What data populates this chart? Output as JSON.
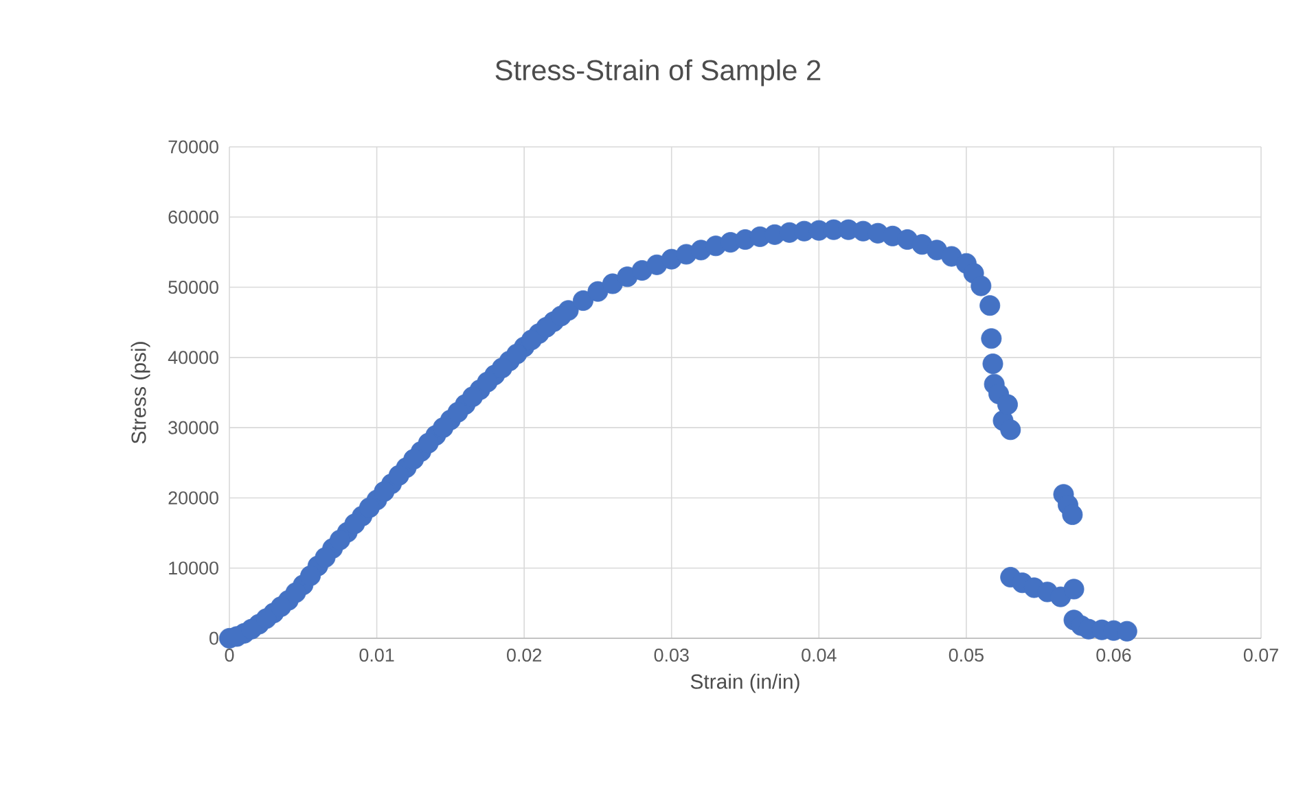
{
  "chart_data": {
    "type": "scatter",
    "title": "Stress-Strain of Sample 2",
    "xlabel": "Strain (in/in)",
    "ylabel": "Stress (psi)",
    "xlim": [
      0,
      0.07
    ],
    "ylim": [
      0,
      70000
    ],
    "xticks": [
      0,
      0.01,
      0.02,
      0.03,
      0.04,
      0.05,
      0.06,
      0.07
    ],
    "yticks": [
      0,
      10000,
      20000,
      30000,
      40000,
      50000,
      60000,
      70000
    ],
    "grid": true,
    "marker": "circle",
    "series": [
      {
        "color": "#4472c4",
        "x": [
          0,
          0.001,
          0.002,
          0.003,
          0.004,
          0.005,
          0.006,
          0.007,
          0.008,
          0.009,
          0.01,
          0.011,
          0.012,
          0.013,
          0.014,
          0.015,
          0.016,
          0.017,
          0.018,
          0.019,
          0.02,
          0.021,
          0.022,
          0.023,
          0.024,
          0.025,
          0.026,
          0.027,
          0.028,
          0.029,
          0.03,
          0.031,
          0.032,
          0.033,
          0.034,
          0.035,
          0.036,
          0.037,
          0.038,
          0.039,
          0.04,
          0.041,
          0.042,
          0.043,
          0.044,
          0.045,
          0.046,
          0.047,
          0.048,
          0.049,
          0.05,
          0.0505,
          0.051,
          0.0516,
          0.0517,
          0.0518,
          0.0519,
          0.0522,
          0.0525,
          0.0528,
          0.053,
          0.0566,
          0.0569,
          0.0572,
          0.053,
          0.0538,
          0.0546,
          0.0555,
          0.0564,
          0.0573,
          0.0573,
          0.0578,
          0.0583,
          0.0592,
          0.06,
          0.0609,
          0.0005,
          0.0015,
          0.0025,
          0.0035,
          0.0045,
          0.0055,
          0.0065,
          0.0075,
          0.0085,
          0.0095,
          0.0105,
          0.0115,
          0.0125,
          0.0135,
          0.0145,
          0.0155,
          0.0165,
          0.0175,
          0.0185,
          0.0195,
          0.0205,
          0.0215,
          0.0225
        ],
        "values": [
          0,
          700,
          2000,
          3600,
          5400,
          7600,
          10300,
          12800,
          15100,
          17400,
          19700,
          22000,
          24300,
          26600,
          28900,
          31100,
          33300,
          35400,
          37500,
          39500,
          41500,
          43400,
          45100,
          46700,
          48100,
          49400,
          50500,
          51500,
          52400,
          53200,
          54000,
          54700,
          55300,
          55900,
          56400,
          56800,
          57200,
          57500,
          57800,
          58000,
          58100,
          58200,
          58200,
          58000,
          57700,
          57300,
          56800,
          56100,
          55300,
          54400,
          53400,
          52000,
          50200,
          47400,
          42700,
          39100,
          36200,
          34800,
          31000,
          33300,
          29700,
          20500,
          19000,
          17600,
          8700,
          7900,
          7200,
          6600,
          5900,
          7000,
          2600,
          1800,
          1300,
          1200,
          1100,
          1000,
          250,
          1300,
          2800,
          4500,
          6500,
          8900,
          11500,
          14000,
          16300,
          18600,
          20900,
          23200,
          25500,
          27800,
          30000,
          32200,
          34400,
          36500,
          38500,
          40500,
          42500,
          44300,
          45900
        ]
      }
    ]
  }
}
